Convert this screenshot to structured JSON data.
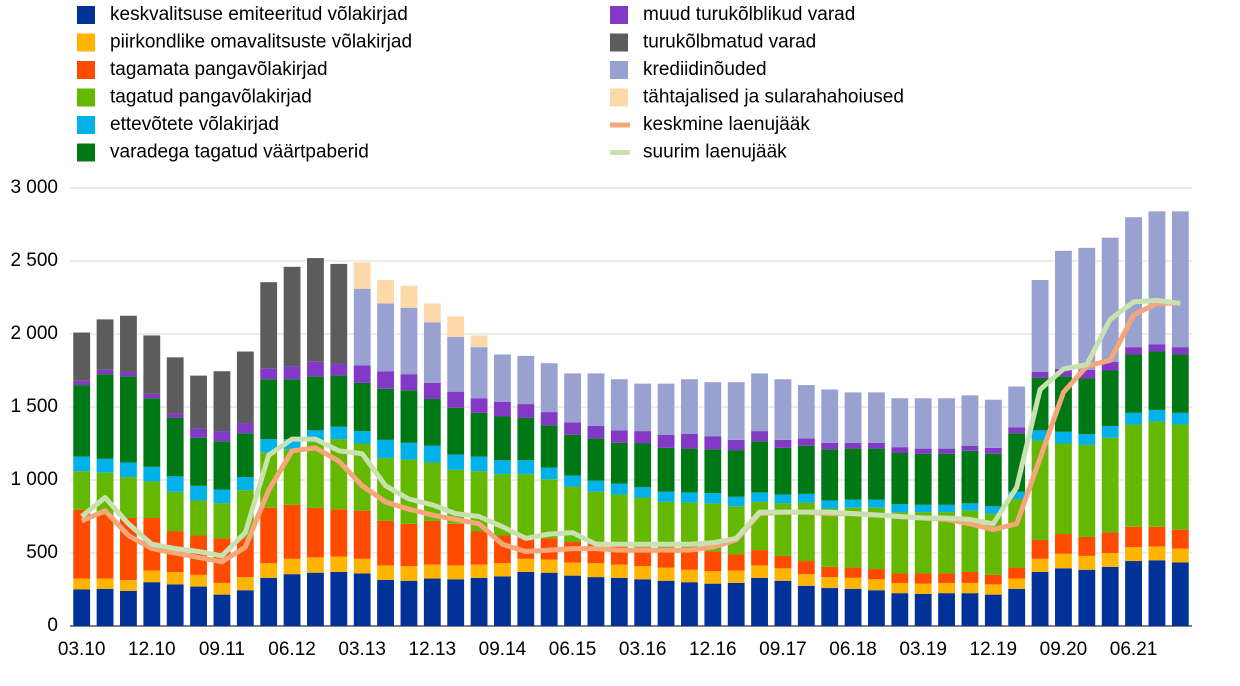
{
  "chart_data": {
    "type": "bar",
    "stacked": true,
    "categories": [
      "03.10",
      null,
      null,
      "12.10",
      null,
      null,
      "09.11",
      null,
      null,
      "06.12",
      null,
      null,
      "03.13",
      null,
      null,
      "12.13",
      null,
      null,
      "09.14",
      null,
      null,
      "06.15",
      null,
      null,
      "03.16",
      null,
      null,
      "12.16",
      null,
      null,
      "09.17",
      null,
      null,
      "06.18",
      null,
      null,
      "03.19",
      null,
      null,
      "12.19",
      null,
      null,
      "09.20",
      null,
      null,
      "06.21",
      null,
      null
    ],
    "ylim": [
      0,
      3000
    ],
    "yticks": [
      0,
      500,
      {
        "value": 1000,
        "label": "1 000"
      },
      {
        "value": 1500,
        "label": "1 500"
      },
      {
        "value": 2000,
        "label": "2 000"
      },
      {
        "value": 2500,
        "label": "2 500"
      },
      {
        "value": 3000,
        "label": "3 000"
      }
    ],
    "grid": true,
    "series": [
      {
        "name": "keskvalitsuse emiteeritud võlakirjad",
        "color": "#003299",
        "values": [
          250,
          255,
          240,
          300,
          285,
          270,
          215,
          245,
          330,
          355,
          365,
          370,
          360,
          315,
          310,
          325,
          320,
          330,
          340,
          370,
          365,
          345,
          335,
          330,
          320,
          310,
          300,
          290,
          295,
          330,
          310,
          275,
          260,
          255,
          245,
          225,
          220,
          225,
          225,
          215,
          255,
          370,
          395,
          385,
          405,
          445,
          450,
          435
        ]
      },
      {
        "name": "piirkondlike omavalitsuste võlakirjad",
        "color": "#ffb400",
        "values": [
          75,
          70,
          75,
          80,
          85,
          80,
          80,
          90,
          100,
          105,
          105,
          105,
          100,
          100,
          100,
          95,
          95,
          90,
          90,
          90,
          90,
          90,
          95,
          90,
          90,
          90,
          85,
          85,
          85,
          85,
          85,
          80,
          75,
          75,
          75,
          70,
          70,
          70,
          70,
          70,
          70,
          90,
          100,
          95,
          95,
          95,
          95,
          95
        ]
      },
      {
        "name": "tagamata pangavõlakirjad",
        "color": "#ff4b00",
        "values": [
          470,
          435,
          425,
          360,
          280,
          270,
          305,
          265,
          380,
          370,
          340,
          325,
          330,
          305,
          290,
          300,
          285,
          230,
          190,
          160,
          145,
          140,
          130,
          130,
          130,
          130,
          135,
          135,
          110,
          105,
          85,
          90,
          70,
          70,
          70,
          65,
          70,
          65,
          75,
          65,
          75,
          130,
          135,
          130,
          140,
          140,
          135,
          130
        ]
      },
      {
        "name": "tagatud pangavõlakirjad",
        "color": "#65b800",
        "values": [
          265,
          290,
          280,
          250,
          270,
          240,
          240,
          330,
          380,
          380,
          450,
          480,
          460,
          430,
          440,
          400,
          370,
          410,
          420,
          420,
          405,
          380,
          360,
          350,
          340,
          320,
          325,
          330,
          330,
          330,
          360,
          400,
          400,
          410,
          420,
          420,
          420,
          420,
          420,
          420,
          470,
          680,
          620,
          630,
          650,
          700,
          720,
          720
        ]
      },
      {
        "name": "ettevõtete võlakirjad",
        "color": "#00b1ea",
        "values": [
          100,
          95,
          100,
          100,
          105,
          100,
          95,
          90,
          90,
          70,
          80,
          85,
          85,
          125,
          115,
          115,
          105,
          100,
          95,
          95,
          80,
          75,
          75,
          75,
          70,
          70,
          70,
          70,
          65,
          65,
          60,
          60,
          55,
          55,
          55,
          55,
          50,
          50,
          50,
          50,
          50,
          70,
          80,
          75,
          80,
          80,
          80,
          80
        ]
      },
      {
        "name": "varadega tagatud väärtpaberid",
        "color": "#007816",
        "values": [
          490,
          580,
          590,
          470,
          400,
          330,
          330,
          300,
          410,
          410,
          370,
          350,
          330,
          350,
          360,
          320,
          320,
          300,
          300,
          290,
          290,
          280,
          290,
          280,
          300,
          300,
          300,
          300,
          320,
          350,
          320,
          330,
          350,
          350,
          350,
          350,
          350,
          350,
          360,
          360,
          400,
          360,
          380,
          380,
          380,
          400,
          400,
          400
        ]
      },
      {
        "name": "muud turukõlblikud varad",
        "color": "#8139c6",
        "values": [
          30,
          30,
          30,
          30,
          30,
          60,
          70,
          70,
          75,
          90,
          100,
          80,
          120,
          120,
          110,
          110,
          110,
          100,
          100,
          95,
          90,
          85,
          85,
          85,
          85,
          90,
          100,
          90,
          70,
          70,
          55,
          50,
          45,
          40,
          40,
          40,
          35,
          35,
          35,
          40,
          40,
          40,
          50,
          60,
          60,
          50,
          50,
          50
        ]
      },
      {
        "name": "turukõlbmatud varad",
        "color": "#5c5c5c",
        "values": [
          330,
          345,
          385,
          400,
          385,
          365,
          410,
          490,
          590,
          680,
          710,
          685,
          0,
          0,
          0,
          0,
          0,
          0,
          0,
          0,
          0,
          0,
          0,
          0,
          0,
          0,
          0,
          0,
          0,
          0,
          0,
          0,
          0,
          0,
          0,
          0,
          0,
          0,
          0,
          0,
          0,
          0,
          0,
          0,
          0,
          0,
          0,
          0
        ]
      },
      {
        "name": "krediidinõuded",
        "color": "#98a1d0",
        "values": [
          0,
          0,
          0,
          0,
          0,
          0,
          0,
          0,
          0,
          0,
          0,
          0,
          525,
          465,
          455,
          415,
          375,
          350,
          325,
          330,
          335,
          335,
          360,
          350,
          325,
          350,
          375,
          370,
          395,
          395,
          415,
          365,
          365,
          345,
          345,
          335,
          345,
          345,
          345,
          330,
          280,
          630,
          810,
          835,
          850,
          890,
          910,
          930
        ]
      },
      {
        "name": "tähtajalised ja sularahahoiused",
        "color": "#fdd8a9",
        "values": [
          0,
          0,
          0,
          0,
          0,
          0,
          0,
          0,
          0,
          0,
          0,
          0,
          180,
          160,
          150,
          130,
          140,
          80,
          0,
          0,
          0,
          0,
          0,
          0,
          0,
          0,
          0,
          0,
          0,
          0,
          0,
          0,
          0,
          0,
          0,
          0,
          0,
          0,
          0,
          0,
          0,
          0,
          0,
          0,
          0,
          0,
          0,
          0
        ]
      },
      {
        "name": "keskmine laenujääk",
        "type": "line",
        "color": "#f5a77a",
        "values": [
          720,
          790,
          620,
          530,
          500,
          470,
          440,
          540,
          930,
          1200,
          1220,
          1130,
          960,
          850,
          800,
          760,
          730,
          700,
          560,
          510,
          520,
          530,
          530,
          520,
          520,
          520,
          520,
          540,
          590,
          770,
          780,
          780,
          770,
          770,
          760,
          750,
          740,
          730,
          700,
          660,
          700,
          1150,
          1600,
          1780,
          1820,
          2130,
          2210,
          2210
        ]
      },
      {
        "name": "suurim laenujääk",
        "type": "line",
        "color": "#c9e0b0",
        "values": [
          750,
          880,
          700,
          560,
          530,
          510,
          480,
          640,
          1170,
          1280,
          1280,
          1200,
          1180,
          960,
          870,
          830,
          770,
          750,
          680,
          600,
          630,
          640,
          560,
          560,
          560,
          560,
          560,
          570,
          600,
          780,
          780,
          780,
          780,
          770,
          760,
          750,
          740,
          740,
          730,
          700,
          950,
          1620,
          1760,
          1790,
          2100,
          2220,
          2230,
          2210
        ]
      }
    ]
  }
}
